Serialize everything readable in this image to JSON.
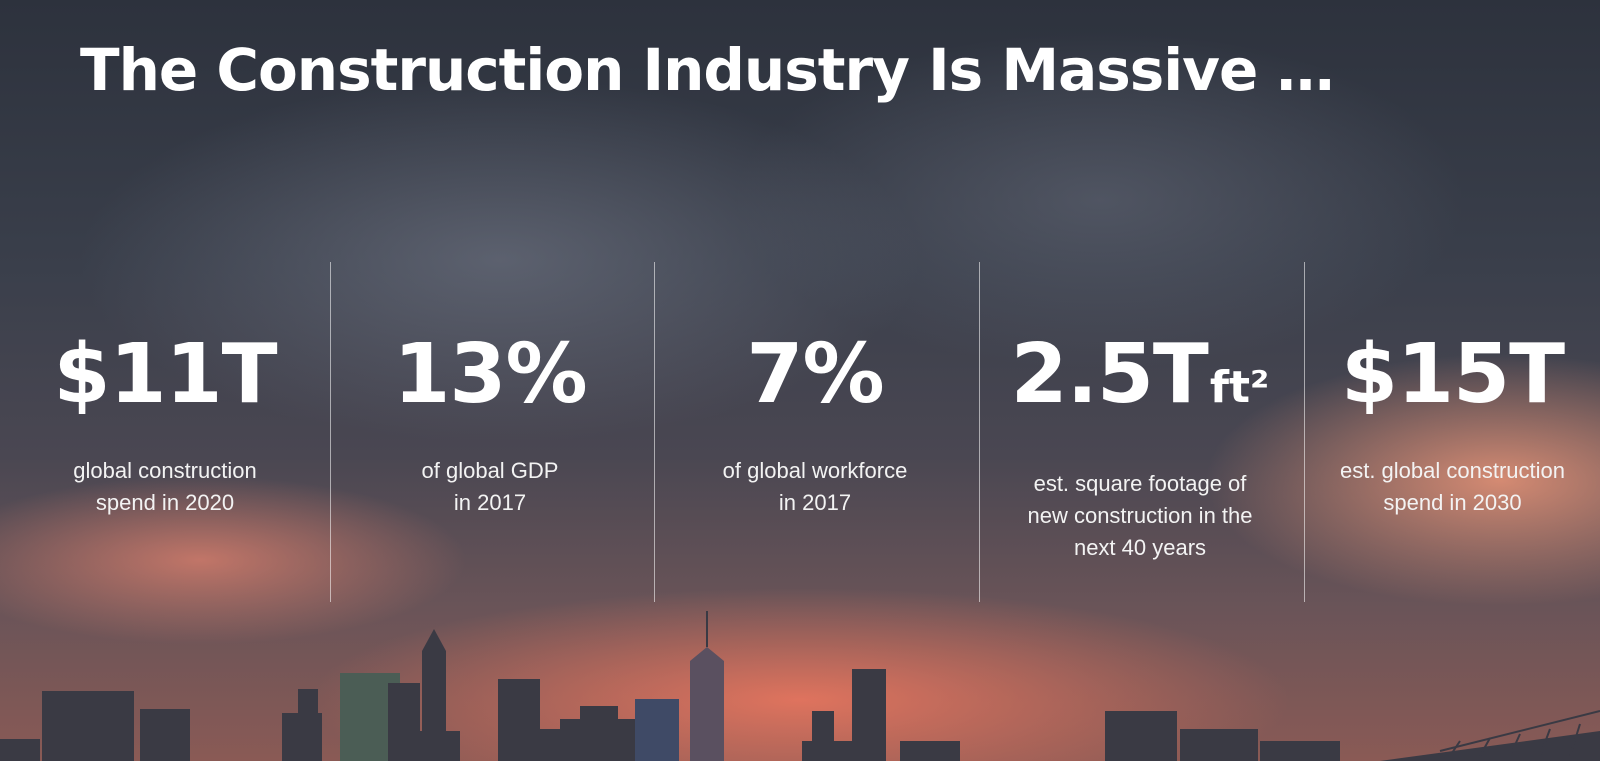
{
  "slide": {
    "title": "The Construction Industry Is Massive …",
    "stats": [
      {
        "value": "$11T",
        "unit": "",
        "desc_line1": "global construction",
        "desc_line2": "spend in 2020",
        "desc_line3": ""
      },
      {
        "value": "13%",
        "unit": "",
        "desc_line1": "of global GDP",
        "desc_line2": "in 2017",
        "desc_line3": ""
      },
      {
        "value": "7%",
        "unit": "",
        "desc_line1": "of global workforce",
        "desc_line2": "in 2017",
        "desc_line3": ""
      },
      {
        "value": "2.5T",
        "unit": "ft²",
        "desc_line1": "est. square footage of",
        "desc_line2": "new construction in the",
        "desc_line3": "next 40 years"
      },
      {
        "value": "$15T",
        "unit": "",
        "desc_line1": "est. global construction",
        "desc_line2": "spend in 2030",
        "desc_line3": ""
      }
    ]
  },
  "colors": {
    "text": "#ffffff",
    "sky_dark": "#2d323d",
    "sunset": "#f07a5f"
  }
}
